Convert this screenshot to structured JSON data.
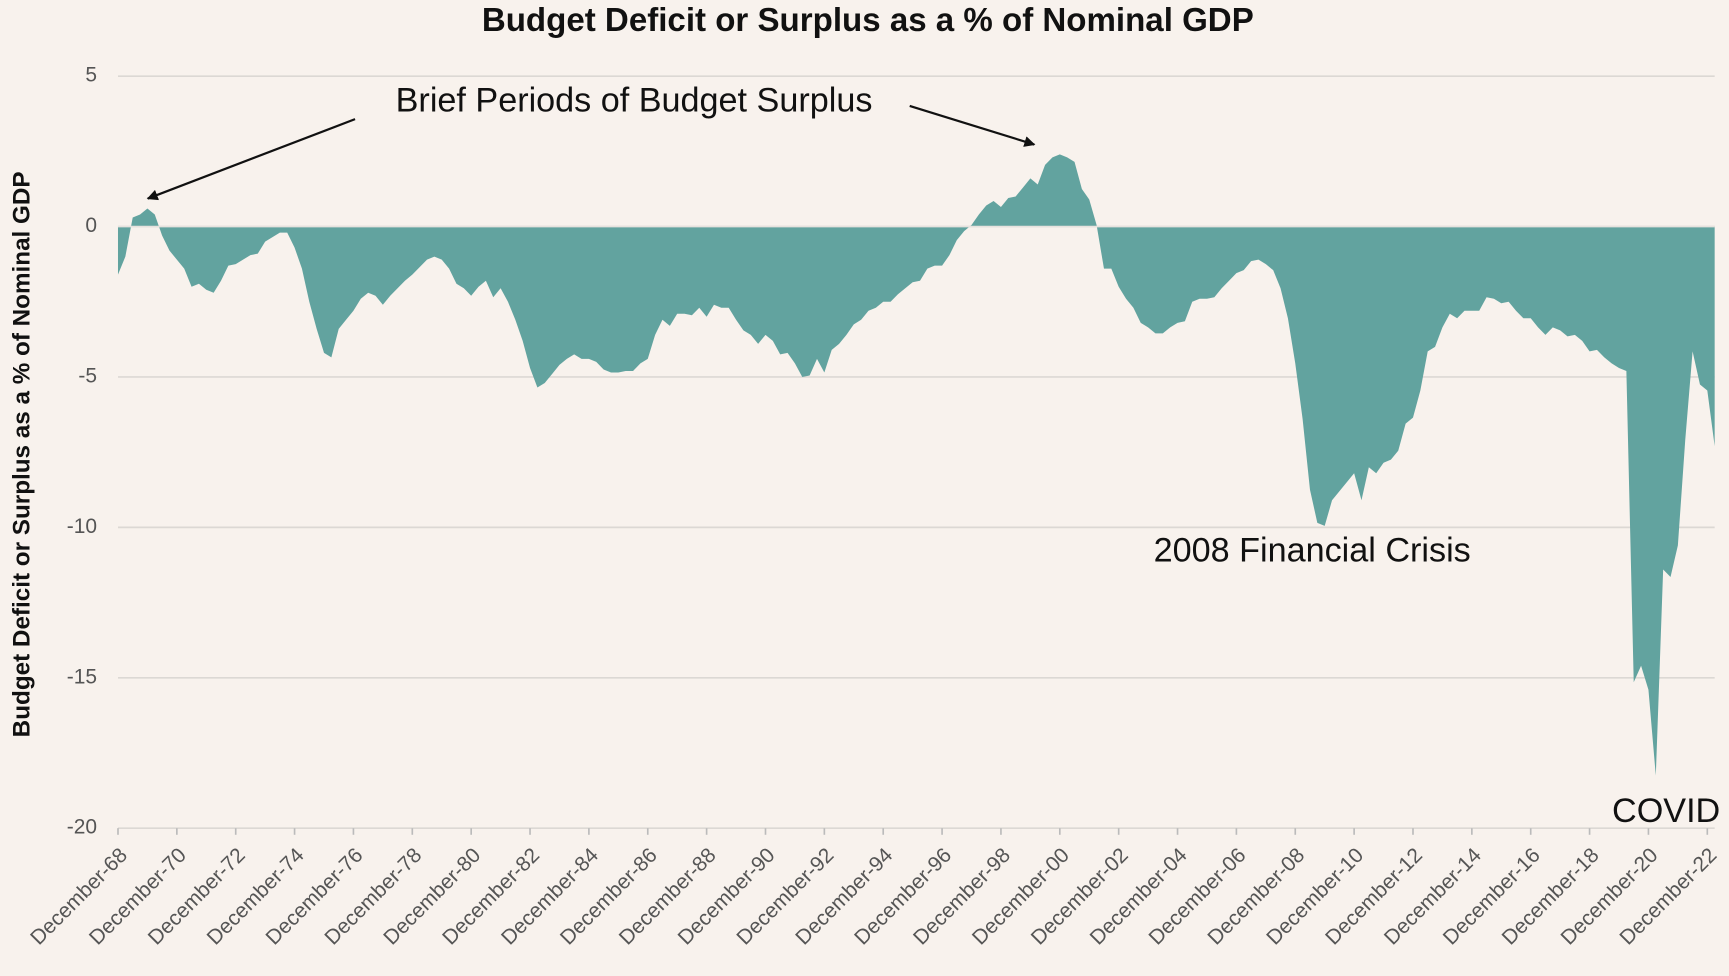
{
  "chart_data": {
    "type": "area",
    "title": "Budget Deficit or Surplus as a % of Nominal GDP",
    "y_label": "Budget Deficit or Surplus as a % of Nominal GDP",
    "annotations": [
      "Brief Periods of Budget Surplus",
      "2008 Financial Crisis",
      "COVID"
    ],
    "color": "#62a39f",
    "grid": true,
    "ylim": [
      -20,
      5
    ],
    "yticks": [
      5,
      0,
      -5,
      -10,
      -15,
      -20
    ],
    "categories": [
      "December-68",
      null,
      null,
      null,
      null,
      null,
      null,
      null,
      "December-70",
      null,
      null,
      null,
      null,
      null,
      null,
      null,
      "December-72",
      null,
      null,
      null,
      null,
      null,
      null,
      null,
      "December-74",
      null,
      null,
      null,
      null,
      null,
      null,
      null,
      "December-76",
      null,
      null,
      null,
      null,
      null,
      null,
      null,
      "December-78",
      null,
      null,
      null,
      null,
      null,
      null,
      null,
      "December-80",
      null,
      null,
      null,
      null,
      null,
      null,
      null,
      "December-82",
      null,
      null,
      null,
      null,
      null,
      null,
      null,
      "December-84",
      null,
      null,
      null,
      null,
      null,
      null,
      null,
      "December-86",
      null,
      null,
      null,
      null,
      null,
      null,
      null,
      "December-88",
      null,
      null,
      null,
      null,
      null,
      null,
      null,
      "December-90",
      null,
      null,
      null,
      null,
      null,
      null,
      null,
      "December-92",
      null,
      null,
      null,
      null,
      null,
      null,
      null,
      "December-94",
      null,
      null,
      null,
      null,
      null,
      null,
      null,
      "December-96",
      null,
      null,
      null,
      null,
      null,
      null,
      null,
      "December-98",
      null,
      null,
      null,
      null,
      null,
      null,
      null,
      "December-00",
      null,
      null,
      null,
      null,
      null,
      null,
      null,
      "December-02",
      null,
      null,
      null,
      null,
      null,
      null,
      null,
      "December-04",
      null,
      null,
      null,
      null,
      null,
      null,
      null,
      "December-06",
      null,
      null,
      null,
      null,
      null,
      null,
      null,
      "December-08",
      null,
      null,
      null,
      null,
      null,
      null,
      null,
      "December-10",
      null,
      null,
      null,
      null,
      null,
      null,
      null,
      "December-12",
      null,
      null,
      null,
      null,
      null,
      null,
      null,
      "December-14",
      null,
      null,
      null,
      null,
      null,
      null,
      null,
      "December-16",
      null,
      null,
      null,
      null,
      null,
      null,
      null,
      "December-18",
      null,
      null,
      null,
      null,
      null,
      null,
      null,
      "December-20",
      null,
      null,
      null,
      null,
      null,
      null,
      null,
      "December-22",
      null
    ],
    "values": [
      -1.6,
      -1.0,
      0.3,
      0.4,
      0.6,
      0.4,
      -0.3,
      -0.8,
      -1.1,
      -1.4,
      -2.0,
      -1.9,
      -2.1,
      -2.2,
      -1.8,
      -1.3,
      -1.25,
      -1.1,
      -0.95,
      -0.9,
      -0.5,
      -0.35,
      -0.2,
      -0.2,
      -0.7,
      -1.4,
      -2.5,
      -3.4,
      -4.2,
      -4.35,
      -3.4,
      -3.1,
      -2.8,
      -2.4,
      -2.2,
      -2.3,
      -2.6,
      -2.3,
      -2.05,
      -1.8,
      -1.6,
      -1.35,
      -1.1,
      -1.0,
      -1.1,
      -1.4,
      -1.9,
      -2.05,
      -2.3,
      -2.0,
      -1.8,
      -2.35,
      -2.05,
      -2.5,
      -3.1,
      -3.8,
      -4.7,
      -5.35,
      -5.2,
      -4.9,
      -4.6,
      -4.4,
      -4.25,
      -4.4,
      -4.4,
      -4.5,
      -4.75,
      -4.85,
      -4.85,
      -4.8,
      -4.8,
      -4.55,
      -4.4,
      -3.6,
      -3.1,
      -3.3,
      -2.9,
      -2.9,
      -2.95,
      -2.7,
      -3.0,
      -2.6,
      -2.7,
      -2.7,
      -3.1,
      -3.45,
      -3.6,
      -3.9,
      -3.6,
      -3.8,
      -4.25,
      -4.2,
      -4.55,
      -5.0,
      -4.95,
      -4.4,
      -4.85,
      -4.1,
      -3.9,
      -3.6,
      -3.25,
      -3.1,
      -2.8,
      -2.7,
      -2.5,
      -2.5,
      -2.25,
      -2.05,
      -1.85,
      -1.8,
      -1.4,
      -1.3,
      -1.3,
      -0.95,
      -0.45,
      -0.15,
      0.05,
      0.4,
      0.7,
      0.85,
      0.65,
      0.95,
      1.0,
      1.3,
      1.6,
      1.4,
      2.05,
      2.3,
      2.4,
      2.3,
      2.15,
      1.25,
      0.9,
      0.05,
      -1.4,
      -1.4,
      -2.0,
      -2.4,
      -2.7,
      -3.2,
      -3.35,
      -3.55,
      -3.55,
      -3.35,
      -3.2,
      -3.15,
      -2.5,
      -2.4,
      -2.4,
      -2.35,
      -2.05,
      -1.8,
      -1.55,
      -1.45,
      -1.15,
      -1.1,
      -1.25,
      -1.45,
      -2.05,
      -3.05,
      -4.55,
      -6.4,
      -8.75,
      -9.85,
      -9.95,
      -9.1,
      -8.8,
      -8.5,
      -8.2,
      -9.1,
      -8.0,
      -8.2,
      -7.85,
      -7.75,
      -7.45,
      -6.55,
      -6.35,
      -5.45,
      -4.15,
      -4.0,
      -3.35,
      -2.9,
      -3.05,
      -2.8,
      -2.8,
      -2.8,
      -2.35,
      -2.4,
      -2.55,
      -2.5,
      -2.8,
      -3.05,
      -3.05,
      -3.35,
      -3.6,
      -3.35,
      -3.45,
      -3.65,
      -3.6,
      -3.8,
      -4.15,
      -4.1,
      -4.35,
      -4.55,
      -4.7,
      -4.8,
      -15.15,
      -14.6,
      -15.4,
      -18.25,
      -11.4,
      -11.65,
      -10.6,
      -7.1,
      -4.15,
      -5.25,
      -5.45,
      -7.3
    ]
  }
}
